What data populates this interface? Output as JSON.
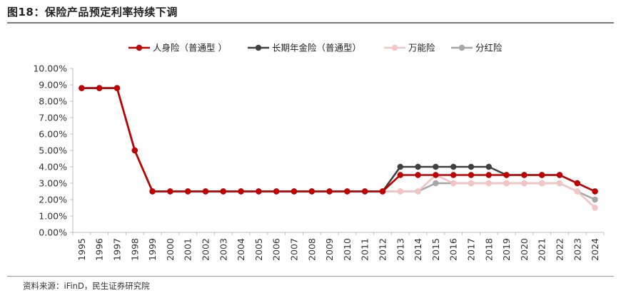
{
  "page": {
    "title": "图18：保险产品预定利率持续下调",
    "source": "资料来源：iFinD，民生证券研究院"
  },
  "chart_data": {
    "type": "line",
    "x": [
      "1995",
      "1996",
      "1997",
      "1998",
      "1999",
      "2000",
      "2001",
      "2002",
      "2003",
      "2004",
      "2005",
      "2006",
      "2007",
      "2008",
      "2009",
      "2010",
      "2011",
      "2012",
      "2013",
      "2014",
      "2015",
      "2016",
      "2017",
      "2018",
      "2019",
      "2020",
      "2021",
      "2022",
      "2023",
      "2024"
    ],
    "ylim": [
      0,
      10
    ],
    "yticks": [
      "0.00%",
      "1.00%",
      "2.00%",
      "3.00%",
      "4.00%",
      "5.00%",
      "6.00%",
      "7.00%",
      "8.00%",
      "9.00%",
      "10.00%"
    ],
    "grid": false,
    "legend_position": "top-center",
    "series": [
      {
        "name": "分红险",
        "color": "#a6a6a6",
        "values": [
          8.8,
          8.8,
          8.8,
          5.0,
          2.5,
          2.5,
          2.5,
          2.5,
          2.5,
          2.5,
          2.5,
          2.5,
          2.5,
          2.5,
          2.5,
          2.5,
          2.5,
          2.5,
          2.5,
          2.5,
          3.0,
          3.0,
          3.0,
          3.0,
          3.0,
          3.0,
          3.0,
          3.0,
          2.5,
          2.0
        ]
      },
      {
        "name": "万能险",
        "color": "#f2c4c4",
        "values": [
          8.8,
          8.8,
          8.8,
          5.0,
          2.5,
          2.5,
          2.5,
          2.5,
          2.5,
          2.5,
          2.5,
          2.5,
          2.5,
          2.5,
          2.5,
          2.5,
          2.5,
          2.5,
          2.5,
          2.5,
          3.5,
          3.0,
          3.0,
          3.0,
          3.0,
          3.0,
          3.0,
          3.0,
          2.5,
          1.5
        ]
      },
      {
        "name": "长期年金险（普通型）",
        "color": "#404040",
        "values": [
          8.8,
          8.8,
          8.8,
          5.0,
          2.5,
          2.5,
          2.5,
          2.5,
          2.5,
          2.5,
          2.5,
          2.5,
          2.5,
          2.5,
          2.5,
          2.5,
          2.5,
          2.5,
          4.0,
          4.0,
          4.0,
          4.0,
          4.0,
          4.0,
          3.5,
          3.5,
          3.5,
          3.5,
          3.0,
          2.5
        ]
      },
      {
        "name": "人身险（普通型 ）",
        "color": "#c00000",
        "values": [
          8.8,
          8.8,
          8.8,
          5.0,
          2.5,
          2.5,
          2.5,
          2.5,
          2.5,
          2.5,
          2.5,
          2.5,
          2.5,
          2.5,
          2.5,
          2.5,
          2.5,
          2.5,
          3.5,
          3.5,
          3.5,
          3.5,
          3.5,
          3.5,
          3.5,
          3.5,
          3.5,
          3.5,
          3.0,
          2.5
        ]
      }
    ],
    "legend_order": [
      3,
      2,
      1,
      0
    ]
  }
}
